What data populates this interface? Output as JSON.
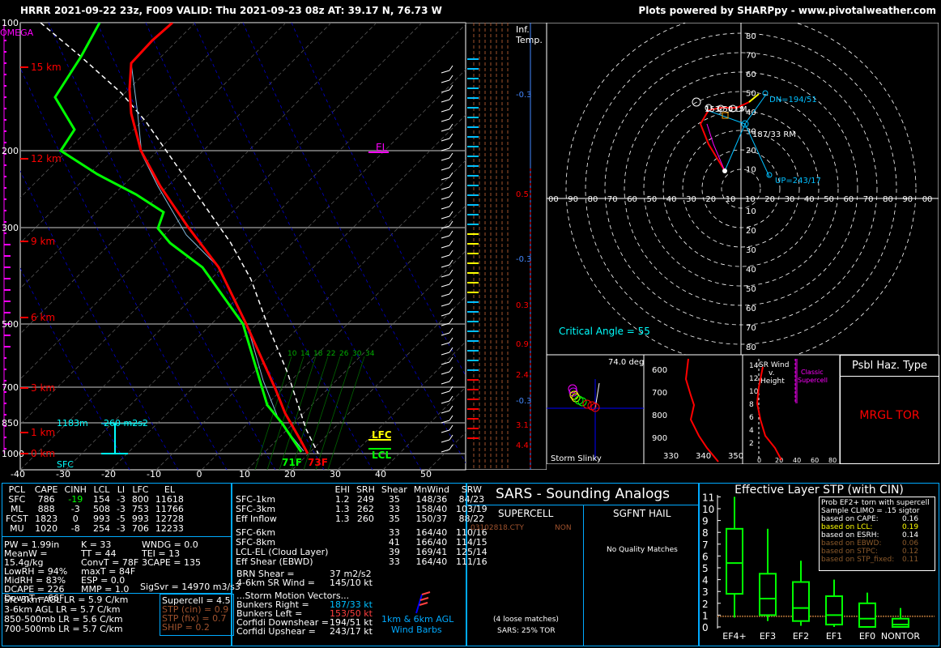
{
  "header": {
    "title": "HRRR 2021-09-22 23z, F009  VALID: Thu 2021-09-23 08z  AT: 39.17 N, 76.73 W",
    "credit": "Plots powered by SHARPpy - www.pivotalweather.com"
  },
  "skewt": {
    "omega_label": "OMEGA",
    "pressure_labels": [
      "100",
      "200",
      "300",
      "500",
      "700",
      "850",
      "1000"
    ],
    "height_labels": [
      "15 km",
      "12 km",
      "9 km",
      "6 km",
      "3 km",
      "1 km",
      "0 km"
    ],
    "temp_ticks": [
      "-40",
      "-30",
      "-20",
      "-10",
      "0",
      "10",
      "20",
      "30",
      "40",
      "50"
    ],
    "el_label": "EL",
    "lfc_label": "LFC",
    "lcl_label": "LCL",
    "sfc_label": "SFC",
    "sfc_temp": "73F",
    "sfc_dew": "71F",
    "hgt_1183": "1183m",
    "srh_260": "260 m2s2",
    "mixing_ratio_labels": [
      "10",
      "14",
      "18",
      "22",
      "26",
      "30",
      "34"
    ],
    "colors": {
      "temp": "#ff0000",
      "dew": "#00ff00",
      "parcel": "#ffffff",
      "height": "#ff0000",
      "omega": "#ff00ff"
    }
  },
  "inf_temp": {
    "label1": "Inf.",
    "label2": "Temp.",
    "values": [
      "-0.3",
      "0.5",
      "-0.3",
      "0.3",
      "0.9",
      "-0.3",
      "2.4",
      "3.1",
      "4.4"
    ]
  },
  "hodograph": {
    "rings_top": [
      "80",
      "70",
      "60",
      "50",
      "40",
      "30",
      "20",
      "10"
    ],
    "rings_bottom": [
      "10",
      "20",
      "30",
      "40",
      "50",
      "60",
      "70",
      "80"
    ],
    "x_ticks": [
      "00",
      "90",
      "80",
      "70",
      "60",
      "50",
      "40",
      "30",
      "20",
      "10",
      "10",
      "20",
      "30",
      "40",
      "50",
      "60",
      "70",
      "80",
      "90",
      "00"
    ],
    "dn_label": "DN=194/51",
    "up_label": "UP=243/17",
    "rm_label": "187/33 RM",
    "lm_label": "153/50 LM",
    "critical_angle": "Critical Angle = 55",
    "point_labels": [
      "1",
      "3",
      "6",
      "9"
    ]
  },
  "storm_slinky": {
    "angle": "74.0 deg",
    "label": "Storm Slinky"
  },
  "theta_e": {
    "y_ticks": [
      "600",
      "700",
      "800",
      "900"
    ],
    "x_ticks": [
      "330",
      "340",
      "350"
    ]
  },
  "sr_wind": {
    "title1": "SR Wind",
    "title2": "v.",
    "title3": "Height",
    "classic": "Classic",
    "supercell": "Supercell",
    "y_ticks": [
      "14",
      "12",
      "10",
      "8",
      "6",
      "4",
      "2"
    ],
    "x_ticks": [
      "0",
      "20",
      "40",
      "60",
      "80"
    ]
  },
  "haz": {
    "title": "Psbl Haz. Type",
    "value": "MRGL TOR"
  },
  "thermo": {
    "headers": [
      "PCL",
      "CAPE",
      "CINH",
      "LCL",
      "LI",
      "LFC",
      "EL"
    ],
    "rows": [
      [
        "SFC",
        "786",
        "-19",
        "154",
        "-3",
        "800",
        "11618"
      ],
      [
        "ML",
        "888",
        "-3",
        "508",
        "-3",
        "753",
        "11766"
      ],
      [
        "FCST",
        "1823",
        "0",
        "993",
        "-5",
        "993",
        "12728"
      ],
      [
        "MU",
        "1020",
        "-8",
        "254",
        "-3",
        "706",
        "12233"
      ]
    ],
    "left_col": [
      "PW = 1.99in",
      "MeanW = 15.4g/kg",
      "LowRH = 94%",
      "MidRH = 83%",
      "DCAPE = 226",
      "DownT = 66F"
    ],
    "mid_col": [
      "K = 33",
      "TT = 44",
      "ConvT = 78F",
      "maxT = 84F",
      "ESP = 0.0",
      "MMP = 1.0"
    ],
    "right_col": [
      "WNDG = 0.0",
      "TEI = 13",
      "3CAPE = 135"
    ],
    "sigsvr": "SigSvr = 14970 m3/s3",
    "lapse": [
      "Sfc-3km AGL LR = 5.9 C/km",
      "3-6km AGL LR = 5.7 C/km",
      "850-500mb LR = 5.6 C/km",
      "700-500mb LR = 5.7 C/km"
    ],
    "params": [
      {
        "label": "Supercell = 4.5",
        "color": "#ffffff"
      },
      {
        "label": "STP (cin) = 0.9",
        "color": "#a0522d"
      },
      {
        "label": "STP (fix) = 0.7",
        "color": "#a0522d"
      },
      {
        "label": "SHIP = 0.2",
        "color": "#a0522d"
      }
    ]
  },
  "kinematic": {
    "headers": [
      "",
      "EHI",
      "SRH",
      "Shear",
      "MnWind",
      "SRW"
    ],
    "rows1": [
      [
        "SFC-1km",
        "1.2",
        "249",
        "35",
        "148/36",
        "84/23"
      ],
      [
        "SFC-3km",
        "1.3",
        "262",
        "33",
        "158/40",
        "103/19"
      ],
      [
        "Eff Inflow",
        "1.3",
        "260",
        "35",
        "150/37",
        "88/22"
      ]
    ],
    "rows2": [
      [
        "SFC-6km",
        "",
        "",
        "33",
        "164/40",
        "110/16"
      ],
      [
        "SFC-8km",
        "",
        "",
        "41",
        "166/40",
        "114/15"
      ],
      [
        "LCL-EL (Cloud Layer)",
        "",
        "",
        "39",
        "169/41",
        "125/14"
      ],
      [
        "Eff Shear (EBWD)",
        "",
        "",
        "33",
        "164/40",
        "111/16"
      ]
    ],
    "brn_shear": "BRN Shear =",
    "brn_val": "37 m2/s2",
    "sr46": "4-6km SR Wind =",
    "sr46_val": "145/10 kt",
    "motion_title": "...Storm Motion Vectors...",
    "motion": [
      {
        "label": "Bunkers Right =",
        "value": "187/33 kt",
        "color": "#00bfff"
      },
      {
        "label": "Bunkers Left =",
        "value": "153/50 kt",
        "color": "#ff4040"
      },
      {
        "label": "Corfidi Downshear =",
        "value": "194/51 kt",
        "color": "#ffffff"
      },
      {
        "label": "Corfidi Upshear =",
        "value": "243/17 kt",
        "color": "#ffffff"
      }
    ],
    "barb_label1": "1km & 6km AGL",
    "barb_label2": "Wind Barbs"
  },
  "sars": {
    "title": "SARS - Sounding Analogs",
    "col1": "SUPERCELL",
    "col2": "SGFNT HAIL",
    "match_id": "03102818.CTY",
    "match_type": "NON",
    "no_match": "No Quality Matches",
    "loose": "(4 loose matches)",
    "tor": "SARS: 25% TOR"
  },
  "stp": {
    "title": "Effective Layer STP (with CIN)",
    "y_ticks": [
      "0",
      "1",
      "2",
      "3",
      "4",
      "5",
      "6",
      "7",
      "8",
      "9",
      "10",
      "11"
    ],
    "categories": [
      "EF4+",
      "EF3",
      "EF2",
      "EF1",
      "EF0",
      "NONTOR"
    ],
    "legend_title1": "Prob EF2+ torn with supercell",
    "legend_title2": "Sample CLIMO = .15 sigtor",
    "legend": [
      {
        "label": "based on CAPE:",
        "value": "0.16",
        "color": "#ffffff"
      },
      {
        "label": "based on LCL:",
        "value": "0.19",
        "color": "#ffff00"
      },
      {
        "label": "based on ESRH:",
        "value": "0.14",
        "color": "#ffffff"
      },
      {
        "label": "based on EBWD:",
        "value": "0.06",
        "color": "#8b5a2b"
      },
      {
        "label": "based on STPC:",
        "value": "0.12",
        "color": "#8b5a2b"
      },
      {
        "label": "based on STP_fixed:",
        "value": "0.11",
        "color": "#8b5a2b"
      }
    ]
  },
  "chart_data": {
    "type": "box",
    "title": "Effective Layer STP (with CIN)",
    "categories": [
      "EF4+",
      "EF3",
      "EF2",
      "EF1",
      "EF0",
      "NONTOR"
    ],
    "whisker_low": [
      0.8,
      0.5,
      0.1,
      0.0,
      0.0,
      0.0
    ],
    "q1": [
      2.8,
      1.0,
      0.5,
      0.2,
      0.0,
      0.0
    ],
    "median": [
      5.4,
      2.4,
      1.6,
      1.0,
      0.7,
      0.2
    ],
    "q3": [
      8.3,
      4.5,
      3.8,
      2.6,
      2.0,
      0.7
    ],
    "whisker_high": [
      11.0,
      8.3,
      5.6,
      4.0,
      2.9,
      1.6
    ],
    "ylim": [
      0,
      11.5
    ],
    "marker_value": 0.9
  }
}
